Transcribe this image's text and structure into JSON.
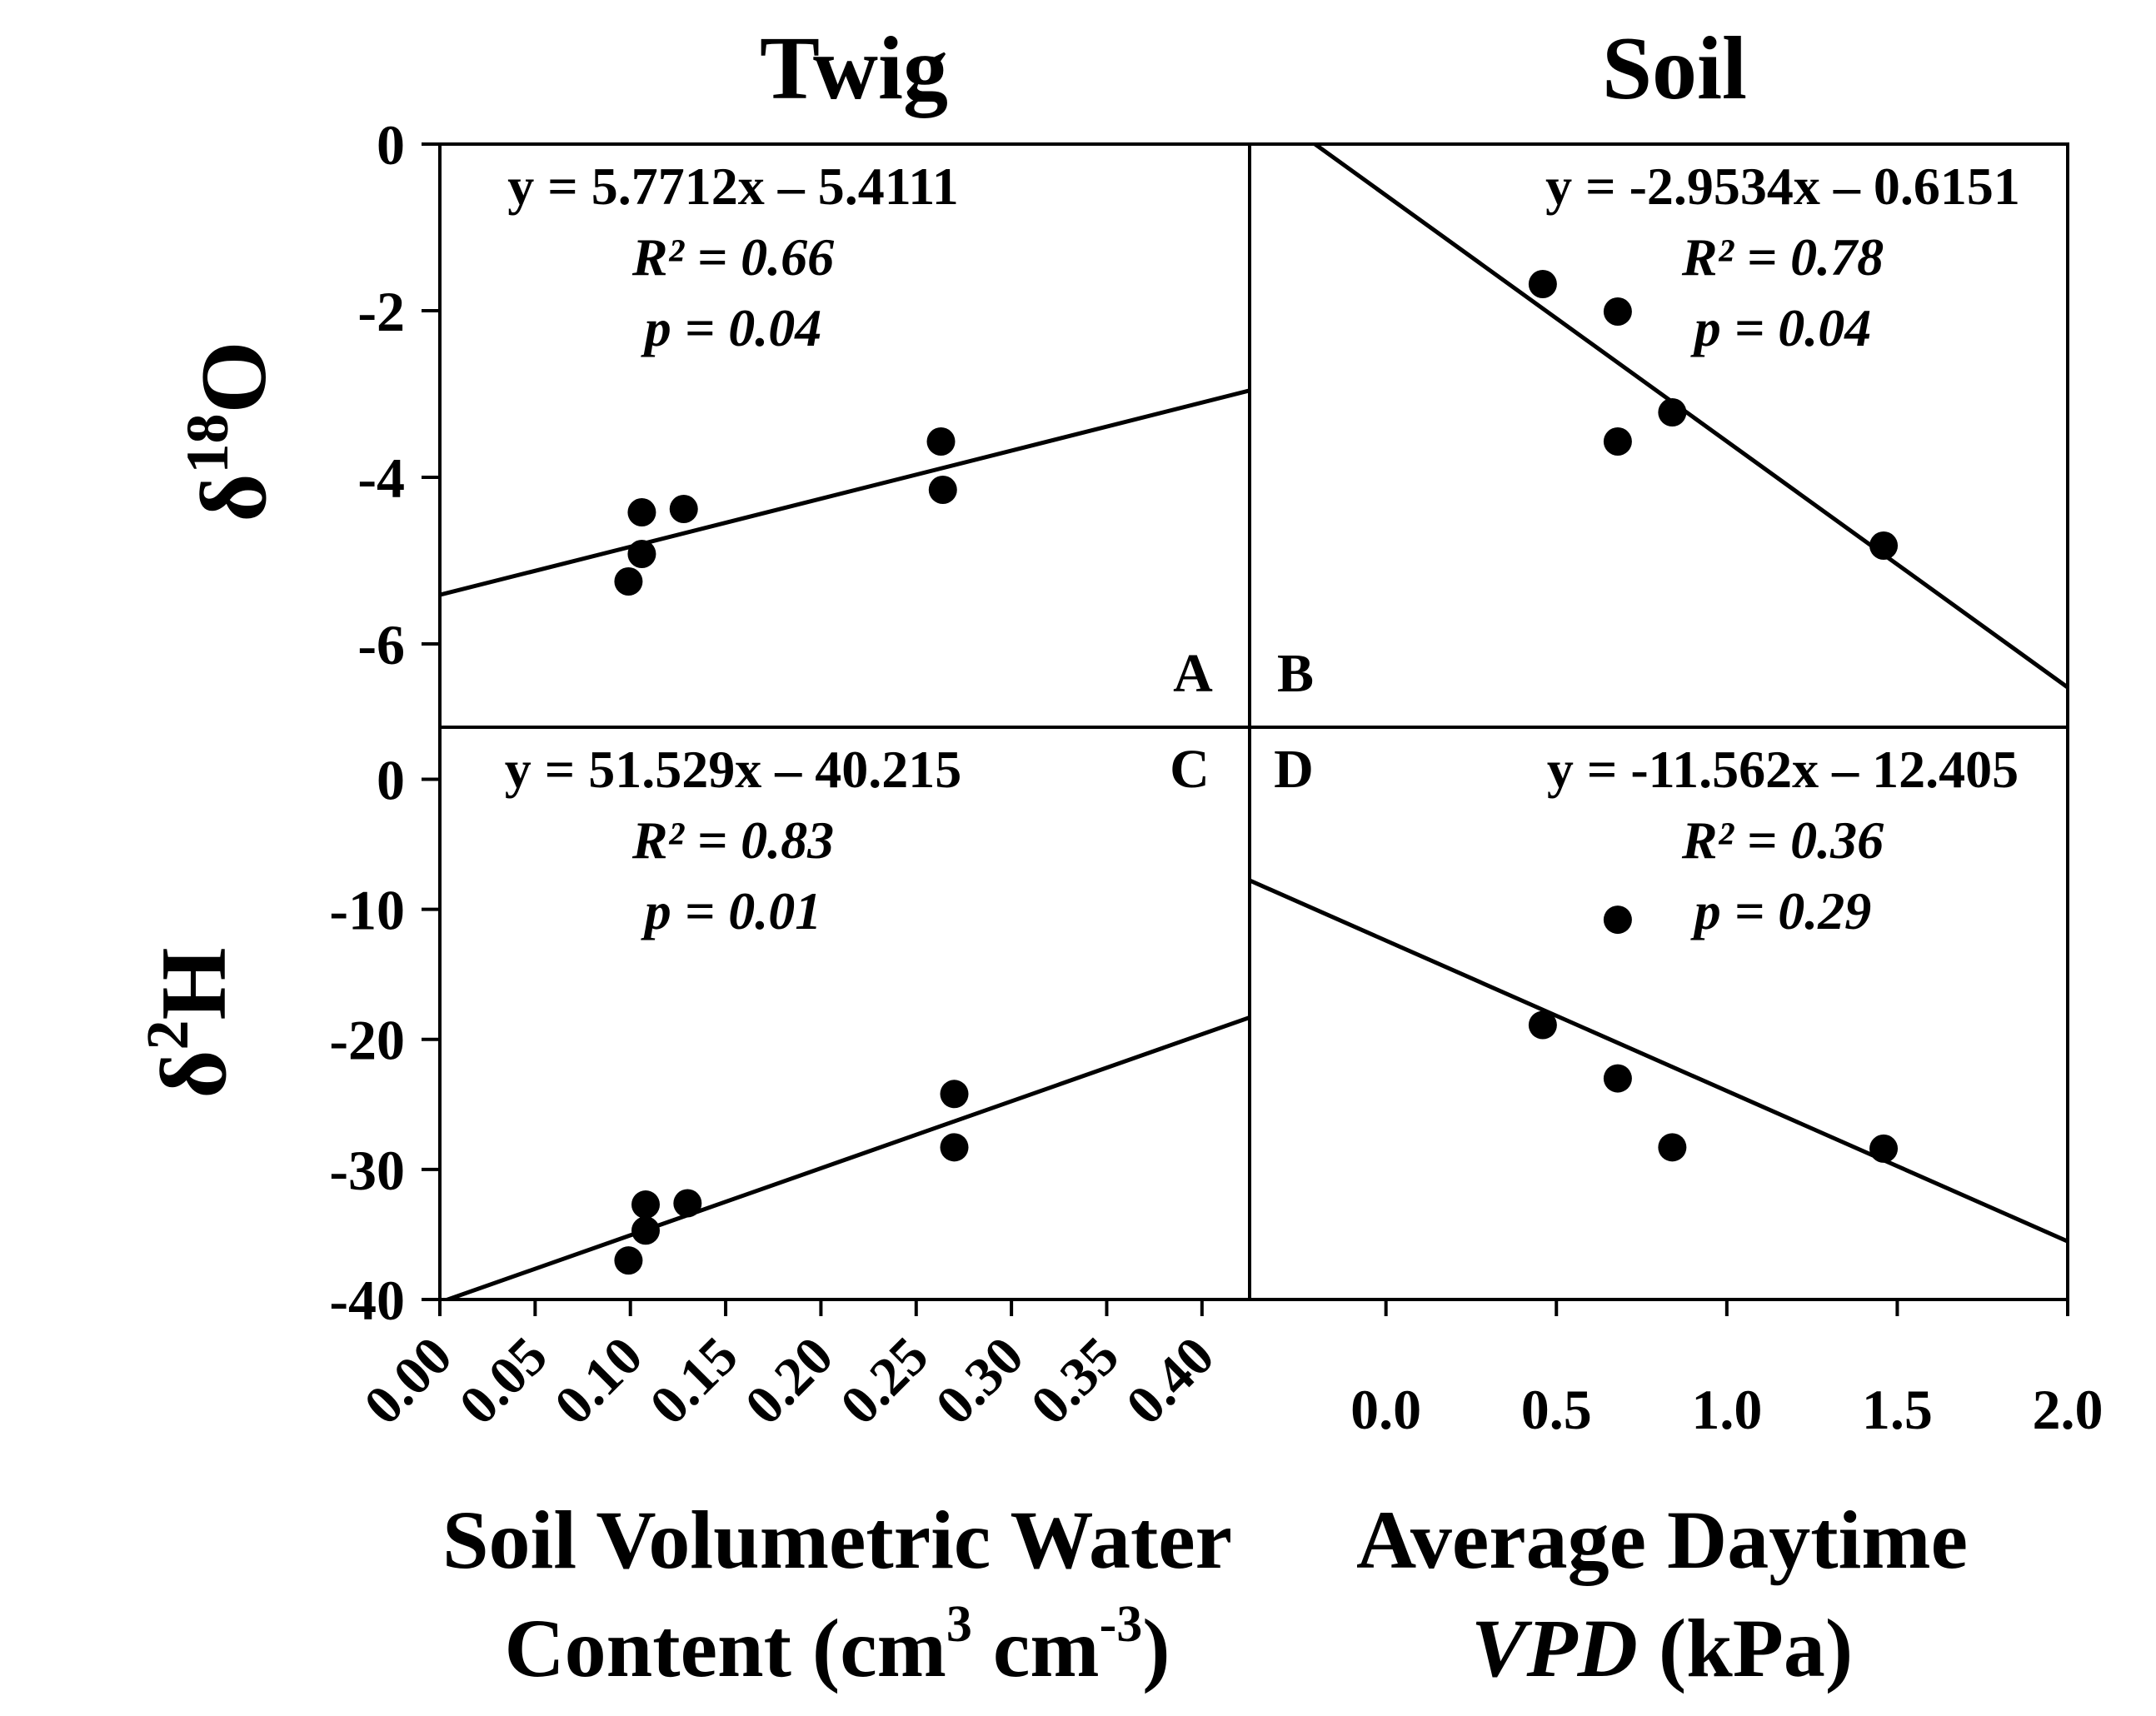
{
  "col_titles": {
    "left": "Twig",
    "right": "Soil"
  },
  "ylabels": {
    "top": {
      "delta": "δ",
      "sup": "18",
      "elem": "O"
    },
    "bottom": {
      "delta": "δ",
      "sup": "2",
      "elem": "H"
    }
  },
  "xlabels": {
    "left": {
      "line1": "Soil Volumetric Water",
      "line2_pre": "Content (cm",
      "sup1": "3",
      "mid": " cm",
      "sup2": "-3",
      "end": ")"
    },
    "right": {
      "line1": "Average Daytime",
      "line2_ital": "VPD",
      "line2_rest": " (kPa)"
    }
  },
  "colors": {
    "ink": "#000000",
    "background": "#ffffff"
  },
  "chart_data": [
    {
      "panel": "A",
      "type": "scatter",
      "title": "Twig",
      "xlabel": "Soil Volumetric Water Content (cm3 cm-3)",
      "ylabel": "δ18O",
      "xlim": [
        0,
        0.425
      ],
      "ylim": [
        -7,
        0
      ],
      "yticks": [
        0,
        -2,
        -4,
        -6
      ],
      "ytick_labels": [
        "0",
        "-2",
        "-4",
        "-6"
      ],
      "points": [
        [
          0.099,
          -5.25
        ],
        [
          0.106,
          -4.42
        ],
        [
          0.106,
          -4.92
        ],
        [
          0.128,
          -4.38
        ],
        [
          0.263,
          -3.57
        ],
        [
          0.264,
          -4.15
        ]
      ],
      "fit": {
        "slope": 5.7712,
        "intercept": -5.4111
      },
      "equation": "y = 5.7712x – 5.4111",
      "r2_label": "R² = 0.66",
      "p_label": "p = 0.04"
    },
    {
      "panel": "B",
      "type": "scatter",
      "title": "Soil",
      "xlabel": "Average Daytime VPD (kPa)",
      "ylabel": "δ18O",
      "xlim": [
        -0.4,
        2.0
      ],
      "ylim": [
        -7,
        0
      ],
      "points": [
        [
          0.46,
          -1.68
        ],
        [
          0.68,
          -2.01
        ],
        [
          0.68,
          -3.57
        ],
        [
          0.84,
          -3.22
        ],
        [
          1.46,
          -4.82
        ]
      ],
      "fit": {
        "slope": -2.9534,
        "intercept": -0.6151
      },
      "equation": "y = -2.9534x – 0.6151",
      "r2_label": "R² = 0.78",
      "p_label": "p = 0.04"
    },
    {
      "panel": "C",
      "type": "scatter",
      "xlabel": "Soil Volumetric Water Content (cm3 cm-3)",
      "ylabel": "δ2H",
      "xlim": [
        0,
        0.425
      ],
      "ylim": [
        -40,
        4
      ],
      "yticks": [
        0,
        -10,
        -20,
        -30,
        -40
      ],
      "ytick_labels": [
        "0",
        "-10",
        "-20",
        "-30",
        "-40"
      ],
      "xticks": [
        0,
        0.05,
        0.1,
        0.15,
        0.2,
        0.25,
        0.3,
        0.35,
        0.4
      ],
      "xtick_labels": [
        "0.00",
        "0.05",
        "0.10",
        "0.15",
        "0.20",
        "0.25",
        "0.30",
        "0.35",
        "0.40"
      ],
      "points": [
        [
          0.099,
          -37.0
        ],
        [
          0.108,
          -32.7
        ],
        [
          0.108,
          -34.7
        ],
        [
          0.13,
          -32.6
        ],
        [
          0.27,
          -24.2
        ],
        [
          0.27,
          -28.3
        ]
      ],
      "fit": {
        "slope": 51.529,
        "intercept": -40.215
      },
      "equation": "y = 51.529x – 40.215",
      "r2_label": "R² = 0.83",
      "p_label": "p = 0.01"
    },
    {
      "panel": "D",
      "type": "scatter",
      "xlabel": "Average Daytime VPD (kPa)",
      "ylabel": "δ2H",
      "xlim": [
        -0.4,
        2.0
      ],
      "ylim": [
        -40,
        4
      ],
      "xticks": [
        0,
        0.5,
        1.0,
        1.5,
        2.0
      ],
      "xtick_labels": [
        "0.0",
        "0.5",
        "1.0",
        "1.5",
        "2.0"
      ],
      "points": [
        [
          0.46,
          -18.9
        ],
        [
          0.68,
          -23.0
        ],
        [
          0.68,
          -10.8
        ],
        [
          0.84,
          -28.3
        ],
        [
          1.46,
          -28.4
        ]
      ],
      "fit": {
        "slope": -11.562,
        "intercept": -12.405
      },
      "equation": "y = -11.562x – 12.405",
      "r2_label": "R² = 0.36",
      "p_label": "p = 0.29"
    }
  ]
}
